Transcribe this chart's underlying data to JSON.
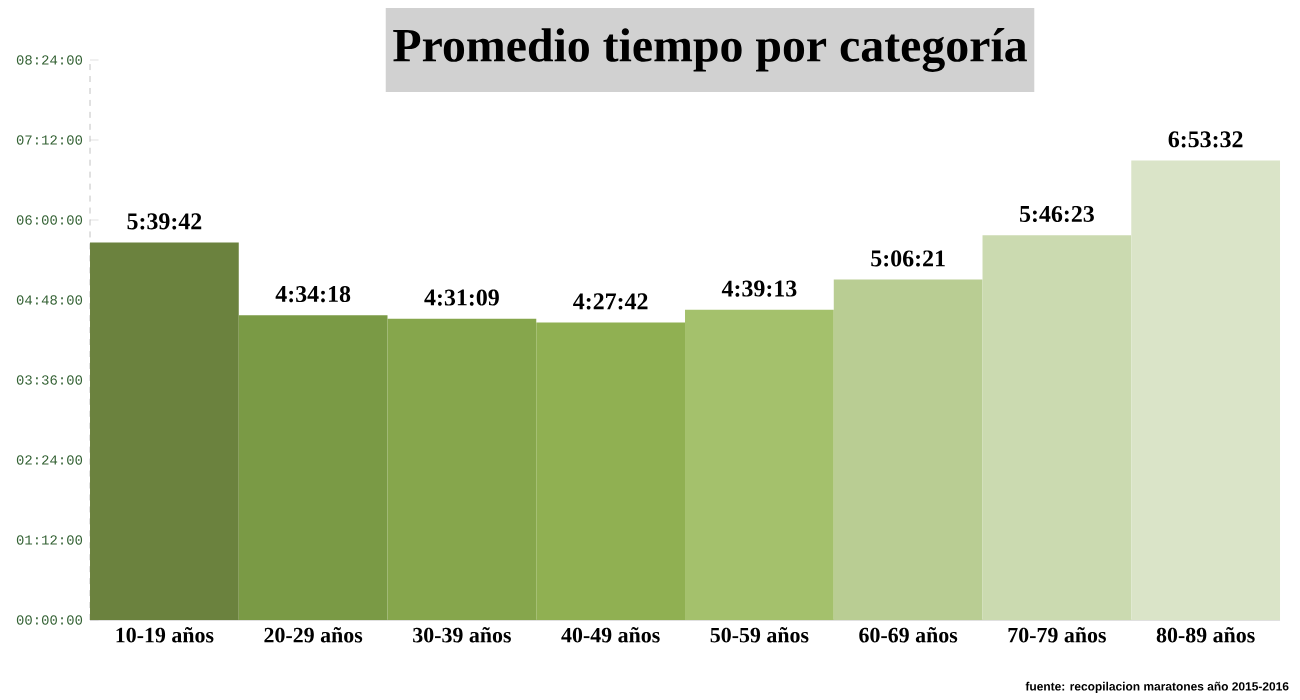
{
  "chart_data": {
    "type": "bar",
    "title": "Promedio tiempo por categoría",
    "categories": [
      "10-19 años",
      "20-29 años",
      "30-39 años",
      "40-49 años",
      "50-59 años",
      "60-69 años",
      "70-79 años",
      "80-89 años"
    ],
    "values": [
      5.66167,
      4.57167,
      4.51917,
      4.46167,
      4.65361,
      5.10583,
      5.77306,
      6.89222
    ],
    "value_labels": [
      "5:39:42",
      "4:34:18",
      "4:31:09",
      "4:27:42",
      "4:39:13",
      "5:06:21",
      "5:46:23",
      "6:53:32"
    ],
    "colors": [
      "#6b823e",
      "#7a9a45",
      "#86a64c",
      "#90b052",
      "#a4c16c",
      "#b9cd93",
      "#cbdab0",
      "#dae4c8"
    ],
    "ylim": [
      0,
      8.4
    ],
    "yticks": [
      {
        "value": 0,
        "label": "00:00:00"
      },
      {
        "value": 1.2,
        "label": "01:12:00"
      },
      {
        "value": 2.4,
        "label": "02:24:00"
      },
      {
        "value": 3.6,
        "label": "03:36:00"
      },
      {
        "value": 4.8,
        "label": "04:48:00"
      },
      {
        "value": 6,
        "label": "06:00:00"
      },
      {
        "value": 7.2,
        "label": "07:12:00"
      },
      {
        "value": 8.4,
        "label": "08:24:00"
      }
    ],
    "annotations": [
      "fuente: recopilacion maratones año 2015-2016"
    ]
  }
}
